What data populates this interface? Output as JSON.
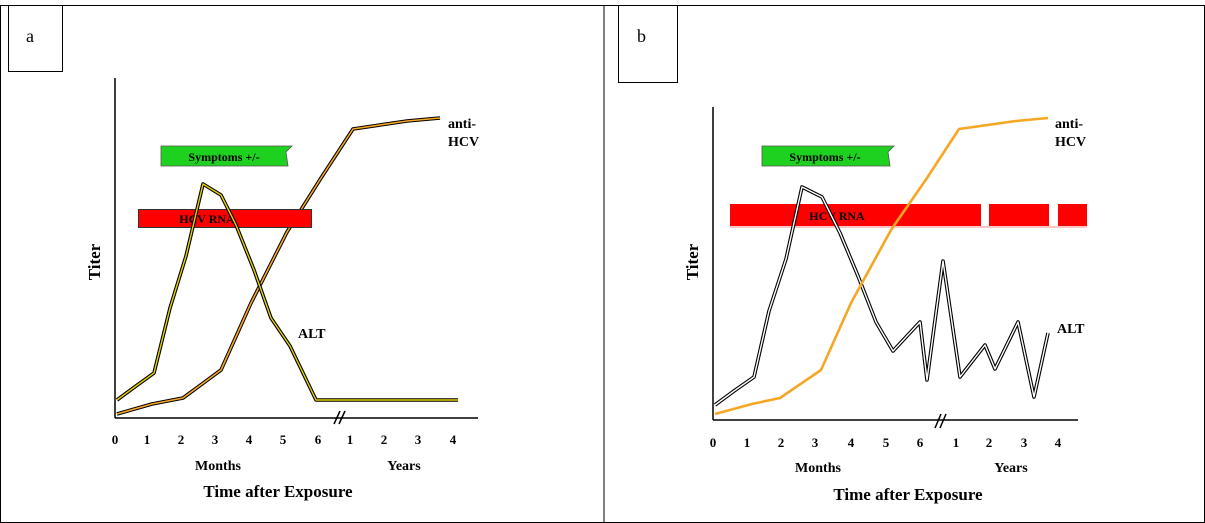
{
  "panels": [
    {
      "id": "a",
      "letter": "a",
      "x_axis_title": "Time after Exposure",
      "y_axis_title": "Titer",
      "months_label": "Months",
      "years_label": "Years",
      "month_ticks": [
        "0",
        "1",
        "2",
        "3",
        "4",
        "5",
        "6"
      ],
      "year_ticks": [
        "1",
        "2",
        "3",
        "4"
      ],
      "symptoms_label": "Symptoms +/-",
      "rna_label": "HCV RNA",
      "alt_label": "ALT",
      "anti_hcv_label_line1": "anti-",
      "anti_hcv_label_line2": "HCV",
      "colors": {
        "symptoms": "#1fd11f",
        "rna": "#ff0000",
        "anti_hcv": "#f5a623",
        "alt": "#000000",
        "alt_fill": "#e8d000"
      }
    },
    {
      "id": "b",
      "letter": "b",
      "x_axis_title": "Time after Exposure",
      "y_axis_title": "Titer",
      "months_label": "Months",
      "years_label": "Years",
      "month_ticks": [
        "0",
        "1",
        "2",
        "3",
        "4",
        "5",
        "6"
      ],
      "year_ticks": [
        "1",
        "2",
        "3",
        "4"
      ],
      "symptoms_label": "Symptoms +/-",
      "rna_label": "HCV RNA",
      "alt_label": "ALT",
      "anti_hcv_label_line1": "anti-",
      "anti_hcv_label_line2": "HCV",
      "colors": {
        "symptoms": "#1fd11f",
        "rna": "#ff0000",
        "anti_hcv": "#f5a623",
        "alt": "#000000",
        "alt_fill": "#ffffff"
      }
    }
  ]
}
